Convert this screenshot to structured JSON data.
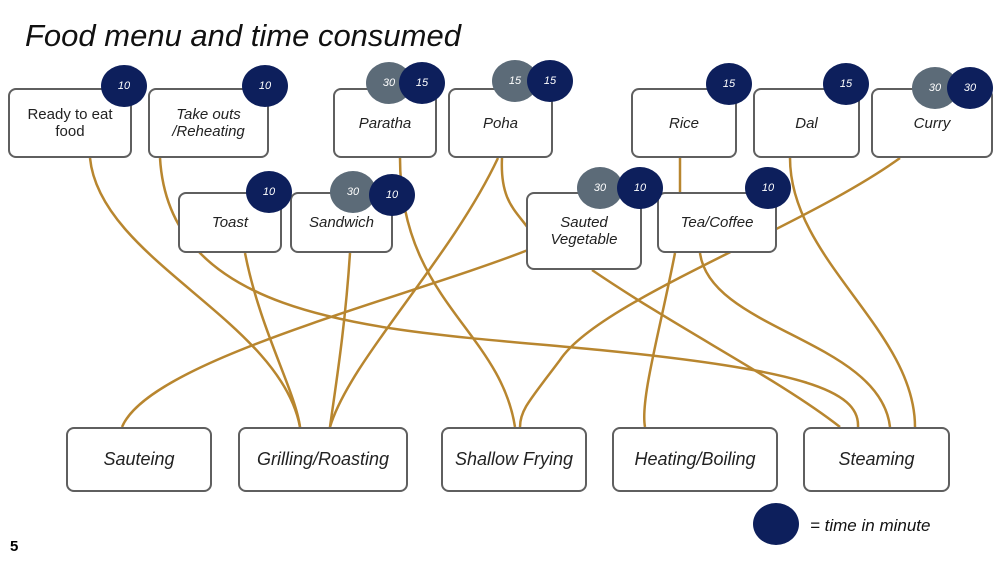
{
  "title": "Food menu and time consumed",
  "menu": [
    {
      "label": "Ready to eat food",
      "times": [
        "10"
      ]
    },
    {
      "label": "Take outs /Reheating",
      "times": [
        "10"
      ]
    },
    {
      "label": "Paratha",
      "times": [
        "30",
        "15"
      ]
    },
    {
      "label": "Poha",
      "times": [
        "15",
        "15"
      ]
    },
    {
      "label": "Rice",
      "times": [
        "15"
      ]
    },
    {
      "label": "Dal",
      "times": [
        "15"
      ]
    },
    {
      "label": "Curry",
      "times": [
        "30",
        "30"
      ]
    },
    {
      "label": "Toast",
      "times": [
        "10"
      ]
    },
    {
      "label": "Sandwich",
      "times": [
        "30",
        "10"
      ]
    },
    {
      "label": "Sauted Vegetable",
      "times": [
        "30",
        "10"
      ]
    },
    {
      "label": "Tea/Coffee",
      "times": [
        "10"
      ]
    }
  ],
  "methods": [
    "Sauteing",
    "Grilling/Roasting",
    "Shallow Frying",
    "Heating/Boiling",
    "Steaming"
  ],
  "legend": "= time in minute",
  "page_number": "5"
}
